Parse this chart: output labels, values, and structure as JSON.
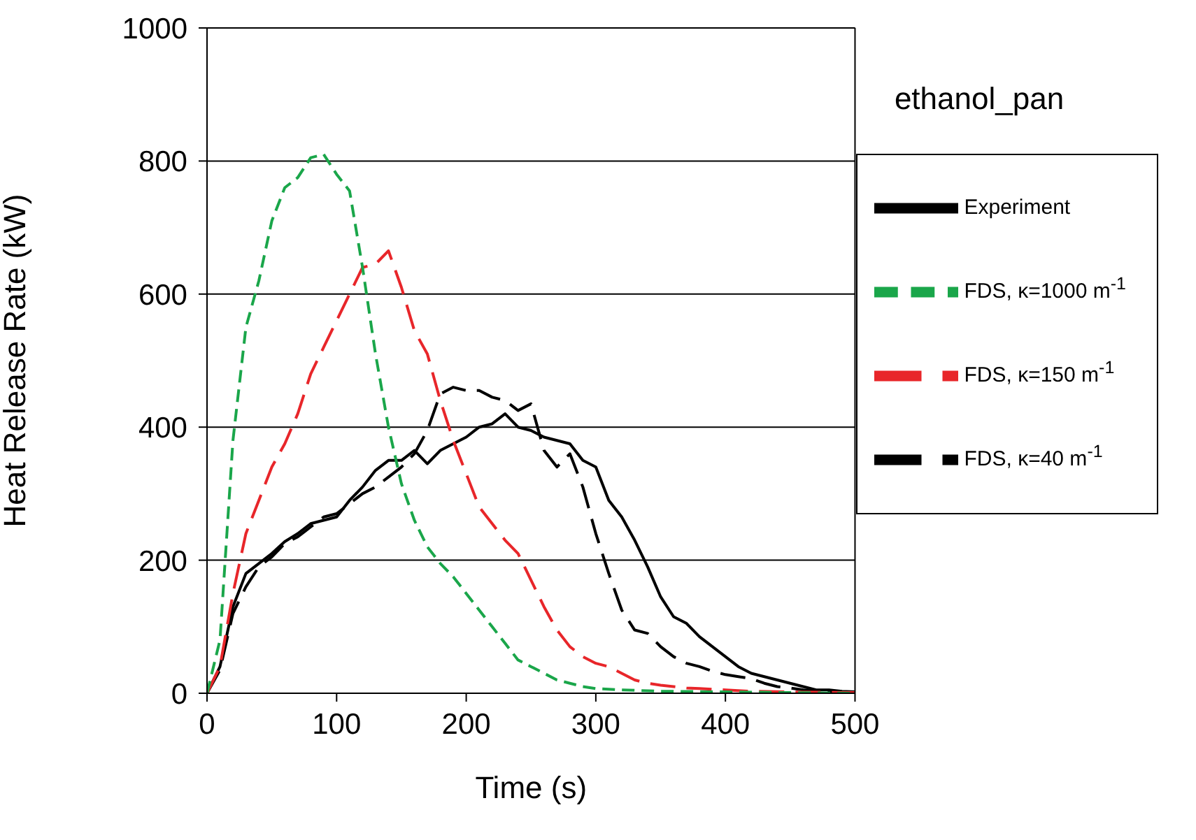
{
  "chart_data": {
    "type": "line",
    "xlabel": "Time (s)",
    "ylabel": "Heat Release Rate (kW)",
    "xlim": [
      0,
      500
    ],
    "xticks": [
      0,
      100,
      200,
      300,
      400,
      500
    ],
    "ylim": [
      0,
      1000
    ],
    "yticks": [
      0,
      200,
      400,
      600,
      800,
      1000
    ],
    "grid": "y",
    "legend": "top right",
    "marker": "none",
    "annotations": [
      "ethanol_pan"
    ],
    "series": [
      {
        "name": "Experiment",
        "color": "#000000",
        "line_style": "solid",
        "x": [
          0,
          10,
          20,
          30,
          40,
          50,
          60,
          70,
          80,
          90,
          100,
          110,
          120,
          130,
          140,
          150,
          160,
          170,
          180,
          190,
          200,
          210,
          220,
          230,
          240,
          250,
          260,
          270,
          280,
          290,
          300,
          310,
          320,
          330,
          340,
          350,
          360,
          370,
          380,
          390,
          400,
          410,
          420,
          430,
          440,
          450,
          460,
          470,
          480,
          490,
          500
        ],
        "values": [
          0,
          40,
          130,
          180,
          195,
          210,
          228,
          240,
          255,
          260,
          265,
          290,
          310,
          335,
          350,
          350,
          365,
          345,
          365,
          375,
          385,
          400,
          405,
          420,
          400,
          395,
          385,
          380,
          375,
          350,
          340,
          290,
          265,
          230,
          190,
          145,
          115,
          105,
          85,
          70,
          55,
          40,
          30,
          25,
          20,
          15,
          10,
          5,
          5,
          3,
          2
        ]
      },
      {
        "name": "FDS, κ=40 m$^{-1}$",
        "color": "#000000",
        "line_style": "dashed",
        "x": [
          0,
          10,
          20,
          30,
          40,
          50,
          60,
          70,
          80,
          90,
          100,
          110,
          120,
          130,
          140,
          150,
          160,
          170,
          180,
          190,
          200,
          210,
          220,
          230,
          240,
          250,
          260,
          270,
          280,
          290,
          300,
          310,
          320,
          330,
          340,
          350,
          360,
          370,
          380,
          390,
          400,
          410,
          420,
          430,
          440,
          450,
          460,
          470,
          480,
          500
        ],
        "values": [
          0,
          35,
          120,
          160,
          190,
          205,
          225,
          235,
          250,
          265,
          270,
          285,
          300,
          310,
          325,
          340,
          360,
          395,
          450,
          460,
          455,
          455,
          445,
          440,
          425,
          435,
          365,
          340,
          360,
          310,
          240,
          180,
          125,
          95,
          90,
          70,
          55,
          45,
          40,
          33,
          28,
          25,
          22,
          15,
          10,
          8,
          5,
          3,
          2,
          1
        ]
      },
      {
        "name": "FDS, κ=150 m$^{-1}$",
        "color": "#e8262a",
        "line_style": "dashed",
        "x": [
          0,
          10,
          20,
          30,
          40,
          50,
          60,
          70,
          80,
          90,
          100,
          110,
          120,
          130,
          140,
          150,
          160,
          170,
          180,
          190,
          200,
          210,
          220,
          230,
          240,
          250,
          260,
          270,
          280,
          290,
          300,
          310,
          320,
          330,
          340,
          350,
          360,
          370,
          380,
          390,
          400,
          420,
          450,
          500
        ],
        "values": [
          0,
          40,
          150,
          240,
          290,
          340,
          375,
          420,
          480,
          520,
          560,
          600,
          640,
          645,
          665,
          610,
          545,
          510,
          440,
          380,
          330,
          280,
          255,
          230,
          210,
          170,
          130,
          95,
          70,
          55,
          45,
          40,
          30,
          20,
          15,
          12,
          10,
          8,
          7,
          6,
          5,
          3,
          2,
          1
        ]
      },
      {
        "name": "FDS, κ=1000 m$^{-1}$",
        "color": "#1aa64a",
        "line_style": "dotted",
        "x": [
          0,
          10,
          20,
          30,
          40,
          50,
          60,
          70,
          80,
          90,
          100,
          110,
          120,
          130,
          140,
          150,
          160,
          170,
          180,
          190,
          200,
          210,
          220,
          230,
          240,
          250,
          260,
          270,
          280,
          290,
          300,
          320,
          350,
          400,
          500
        ],
        "values": [
          0,
          80,
          380,
          550,
          620,
          710,
          760,
          775,
          805,
          810,
          780,
          755,
          640,
          510,
          400,
          315,
          260,
          220,
          195,
          175,
          150,
          125,
          100,
          75,
          50,
          40,
          30,
          20,
          15,
          10,
          7,
          5,
          3,
          2,
          0
        ]
      }
    ]
  }
}
